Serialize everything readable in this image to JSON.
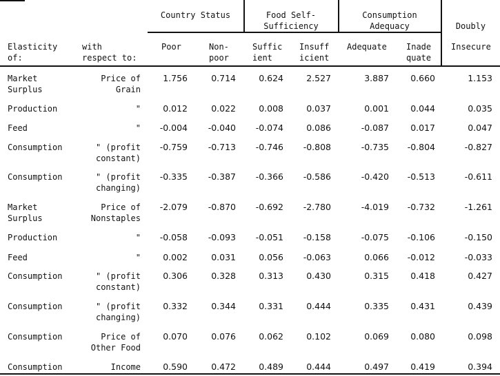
{
  "headers": {
    "groups": [
      {
        "key": "country",
        "label": "Country Status"
      },
      {
        "key": "food",
        "label": "Food Self-\nSufficiency"
      },
      {
        "key": "consumption",
        "label": "Consumption\nAdequacy"
      },
      {
        "key": "doubly",
        "label": "Doubly"
      }
    ],
    "elasticity_of": "Elasticity\nof:",
    "with_respect_to": "with\nrespect to:",
    "columns": [
      "Poor",
      "Non-\npoor",
      "Suffic\nient",
      "Insuff\nicient",
      "Adequate",
      "Inade\nquate",
      "Insecure"
    ]
  },
  "rows": [
    {
      "elasticity": "Market\nSurplus",
      "respect": "Price of\nGrain",
      "values": [
        "1.756",
        "0.714",
        "0.624",
        "2.527",
        "3.887",
        "0.660",
        "1.153"
      ]
    },
    {
      "elasticity": "Production",
      "respect": "\"",
      "values": [
        "0.012",
        "0.022",
        "0.008",
        "0.037",
        "0.001",
        "0.044",
        "0.035"
      ]
    },
    {
      "elasticity": "Feed",
      "respect": "\"",
      "values": [
        "-0.004",
        "-0.040",
        "-0.074",
        "0.086",
        "-0.087",
        "0.017",
        "0.047"
      ]
    },
    {
      "elasticity": "Consumption",
      "respect": "\" (profit\nconstant)",
      "values": [
        "-0.759",
        "-0.713",
        "-0.746",
        "-0.808",
        "-0.735",
        "-0.804",
        "-0.827"
      ]
    },
    {
      "elasticity": "Consumption",
      "respect": "\" (profit\nchanging)",
      "values": [
        "-0.335",
        "-0.387",
        "-0.366",
        "-0.586",
        "-0.420",
        "-0.513",
        "-0.611"
      ]
    },
    {
      "elasticity": "Market\nSurplus",
      "respect": "Price of\nNonstaples",
      "values": [
        "-2.079",
        "-0.870",
        "-0.692",
        "-2.780",
        "-4.019",
        "-0.732",
        "-1.261"
      ]
    },
    {
      "elasticity": "Production",
      "respect": "\"",
      "values": [
        "-0.058",
        "-0.093",
        "-0.051",
        "-0.158",
        "-0.075",
        "-0.106",
        "-0.150"
      ]
    },
    {
      "elasticity": "Feed",
      "respect": "\"",
      "values": [
        "0.002",
        "0.031",
        "0.056",
        "-0.063",
        "0.066",
        "-0.012",
        "-0.033"
      ]
    },
    {
      "elasticity": "Consumption",
      "respect": "\" (profit\nconstant)",
      "values": [
        "0.306",
        "0.328",
        "0.313",
        "0.430",
        "0.315",
        "0.418",
        "0.427"
      ]
    },
    {
      "elasticity": "Consumption",
      "respect": "\" (profit\nchanging)",
      "values": [
        "0.332",
        "0.344",
        "0.331",
        "0.444",
        "0.335",
        "0.431",
        "0.439"
      ]
    },
    {
      "elasticity": "Consumption",
      "respect": "Price of\nOther Food",
      "values": [
        "0.070",
        "0.076",
        "0.062",
        "0.102",
        "0.069",
        "0.080",
        "0.098"
      ]
    },
    {
      "elasticity": "Consumption",
      "respect": "Income",
      "values": [
        "0.590",
        "0.472",
        "0.489",
        "0.444",
        "0.497",
        "0.419",
        "0.394"
      ]
    }
  ]
}
